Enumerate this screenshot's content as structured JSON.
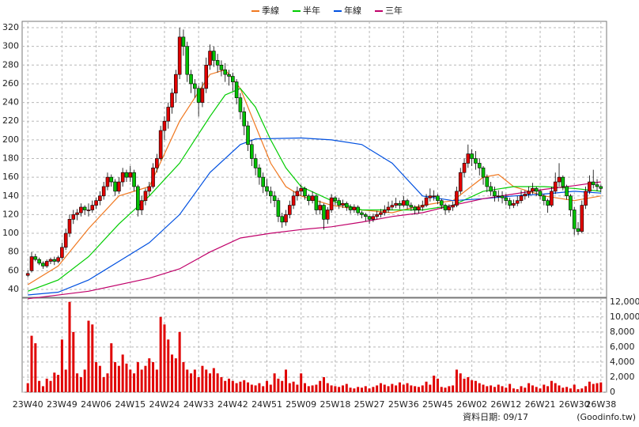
{
  "chart_data": {
    "type": "candlestick",
    "grid": true,
    "categories": [
      "23W40",
      null,
      null,
      null,
      null,
      null,
      null,
      null,
      null,
      "23W49",
      null,
      null,
      null,
      null,
      null,
      null,
      null,
      null,
      "24W06",
      null,
      null,
      null,
      null,
      null,
      null,
      null,
      null,
      "24W15",
      null,
      null,
      null,
      null,
      null,
      null,
      null,
      null,
      "24W24",
      null,
      null,
      null,
      null,
      null,
      null,
      null,
      null,
      "24W33",
      null,
      null,
      null,
      null,
      null,
      null,
      null,
      null,
      "24W42",
      null,
      null,
      null,
      null,
      null,
      null,
      null,
      null,
      "24W51",
      null,
      null,
      null,
      null,
      null,
      null,
      null,
      null,
      "25W09",
      null,
      null,
      null,
      null,
      null,
      null,
      null,
      null,
      "25W18",
      null,
      null,
      null,
      null,
      null,
      null,
      null,
      null,
      "25W27",
      null,
      null,
      null,
      null,
      null,
      null,
      null,
      null,
      "25W36",
      null,
      null,
      null,
      null,
      null,
      null,
      null,
      null,
      "25W45",
      null,
      null,
      null,
      null,
      null,
      null,
      null,
      null,
      "26W02",
      null,
      null,
      null,
      null,
      null,
      null,
      null,
      null,
      "26W12",
      null,
      null,
      null,
      null,
      null,
      null,
      null,
      null,
      "26W21",
      null,
      null,
      null,
      null,
      null,
      null,
      null,
      null,
      "26W30",
      null,
      null,
      null,
      null,
      null,
      null,
      "26W38"
    ],
    "up_color": "#e00000",
    "down_color": "#00c000",
    "candles": [
      [
        55,
        60,
        53,
        57
      ],
      [
        60,
        80,
        58,
        75
      ],
      [
        75,
        78,
        70,
        72
      ],
      [
        72,
        74,
        66,
        68
      ],
      [
        68,
        70,
        62,
        65
      ],
      [
        65,
        72,
        63,
        70
      ],
      [
        70,
        74,
        67,
        72
      ],
      [
        72,
        75,
        66,
        70
      ],
      [
        70,
        76,
        68,
        74
      ],
      [
        74,
        90,
        72,
        85
      ],
      [
        85,
        105,
        82,
        100
      ],
      [
        100,
        120,
        96,
        115
      ],
      [
        115,
        125,
        110,
        120
      ],
      [
        120,
        126,
        114,
        122
      ],
      [
        122,
        132,
        118,
        128
      ],
      [
        128,
        130,
        120,
        125
      ],
      [
        125,
        132,
        118,
        125
      ],
      [
        125,
        135,
        122,
        130
      ],
      [
        130,
        138,
        126,
        135
      ],
      [
        135,
        145,
        130,
        140
      ],
      [
        140,
        155,
        136,
        150
      ],
      [
        150,
        165,
        146,
        160
      ],
      [
        160,
        163,
        150,
        155
      ],
      [
        155,
        158,
        140,
        145
      ],
      [
        145,
        160,
        142,
        155
      ],
      [
        155,
        170,
        150,
        165
      ],
      [
        165,
        168,
        155,
        160
      ],
      [
        160,
        172,
        155,
        165
      ],
      [
        165,
        168,
        145,
        150
      ],
      [
        150,
        152,
        118,
        125
      ],
      [
        125,
        140,
        120,
        135
      ],
      [
        135,
        148,
        130,
        145
      ],
      [
        145,
        155,
        140,
        150
      ],
      [
        150,
        175,
        148,
        170
      ],
      [
        170,
        185,
        165,
        180
      ],
      [
        180,
        215,
        178,
        210
      ],
      [
        210,
        225,
        200,
        220
      ],
      [
        220,
        240,
        212,
        235
      ],
      [
        235,
        255,
        228,
        250
      ],
      [
        250,
        275,
        240,
        270
      ],
      [
        270,
        320,
        265,
        310
      ],
      [
        310,
        318,
        290,
        300
      ],
      [
        300,
        305,
        262,
        270
      ],
      [
        270,
        275,
        250,
        260
      ],
      [
        260,
        265,
        245,
        255
      ],
      [
        255,
        258,
        225,
        240
      ],
      [
        240,
        262,
        235,
        255
      ],
      [
        255,
        288,
        250,
        280
      ],
      [
        280,
        302,
        275,
        295
      ],
      [
        295,
        300,
        278,
        285
      ],
      [
        285,
        292,
        272,
        280
      ],
      [
        280,
        285,
        268,
        275
      ],
      [
        275,
        282,
        262,
        270
      ],
      [
        270,
        275,
        258,
        268
      ],
      [
        268,
        272,
        252,
        262
      ],
      [
        262,
        265,
        238,
        245
      ],
      [
        245,
        250,
        222,
        230
      ],
      [
        230,
        235,
        205,
        215
      ],
      [
        215,
        220,
        188,
        195
      ],
      [
        195,
        200,
        172,
        180
      ],
      [
        180,
        185,
        162,
        170
      ],
      [
        170,
        174,
        152,
        160
      ],
      [
        160,
        165,
        143,
        150
      ],
      [
        150,
        158,
        140,
        145
      ],
      [
        145,
        150,
        132,
        140
      ],
      [
        140,
        145,
        128,
        135
      ],
      [
        135,
        138,
        112,
        118
      ],
      [
        118,
        122,
        106,
        112
      ],
      [
        112,
        125,
        108,
        120
      ],
      [
        120,
        135,
        116,
        130
      ],
      [
        130,
        145,
        126,
        140
      ],
      [
        140,
        150,
        135,
        145
      ],
      [
        145,
        152,
        140,
        148
      ],
      [
        148,
        150,
        136,
        140
      ],
      [
        140,
        142,
        130,
        135
      ],
      [
        135,
        145,
        132,
        140
      ],
      [
        140,
        142,
        120,
        125
      ],
      [
        125,
        135,
        120,
        130
      ],
      [
        130,
        132,
        104,
        115
      ],
      [
        115,
        128,
        110,
        125
      ],
      [
        125,
        142,
        122,
        138
      ],
      [
        138,
        140,
        130,
        135
      ],
      [
        135,
        138,
        126,
        130
      ],
      [
        130,
        136,
        127,
        132
      ],
      [
        132,
        134,
        124,
        128
      ],
      [
        128,
        131,
        121,
        125
      ],
      [
        125,
        131,
        122,
        128
      ],
      [
        128,
        130,
        119,
        122
      ],
      [
        122,
        124,
        116,
        120
      ],
      [
        120,
        122,
        113,
        118
      ],
      [
        118,
        119,
        110,
        115
      ],
      [
        115,
        121,
        112,
        118
      ],
      [
        118,
        124,
        115,
        120
      ],
      [
        120,
        126,
        117,
        122
      ],
      [
        122,
        130,
        119,
        125
      ],
      [
        125,
        134,
        122,
        128
      ],
      [
        128,
        135,
        125,
        130
      ],
      [
        130,
        138,
        127,
        132
      ],
      [
        132,
        135,
        126,
        130
      ],
      [
        130,
        140,
        128,
        135
      ],
      [
        135,
        137,
        126,
        130
      ],
      [
        130,
        133,
        124,
        128
      ],
      [
        128,
        130,
        120,
        125
      ],
      [
        125,
        131,
        121,
        128
      ],
      [
        128,
        135,
        124,
        130
      ],
      [
        130,
        142,
        128,
        138
      ],
      [
        138,
        148,
        134,
        140
      ],
      [
        140,
        146,
        135,
        140
      ],
      [
        140,
        142,
        131,
        135
      ],
      [
        135,
        137,
        126,
        130
      ],
      [
        130,
        132,
        120,
        125
      ],
      [
        125,
        131,
        122,
        128
      ],
      [
        128,
        134,
        124,
        130
      ],
      [
        130,
        150,
        128,
        145
      ],
      [
        145,
        170,
        142,
        165
      ],
      [
        165,
        180,
        160,
        175
      ],
      [
        175,
        195,
        170,
        185
      ],
      [
        185,
        190,
        172,
        180
      ],
      [
        180,
        188,
        168,
        175
      ],
      [
        175,
        180,
        162,
        170
      ],
      [
        170,
        172,
        152,
        160
      ],
      [
        160,
        163,
        144,
        150
      ],
      [
        150,
        155,
        140,
        145
      ],
      [
        145,
        150,
        134,
        140
      ],
      [
        140,
        146,
        134,
        140
      ],
      [
        140,
        145,
        132,
        138
      ],
      [
        138,
        142,
        130,
        135
      ],
      [
        135,
        138,
        126,
        130
      ],
      [
        130,
        136,
        127,
        132
      ],
      [
        132,
        140,
        129,
        135
      ],
      [
        135,
        146,
        132,
        140
      ],
      [
        140,
        146,
        136,
        142
      ],
      [
        142,
        150,
        138,
        145
      ],
      [
        145,
        154,
        142,
        148
      ],
      [
        148,
        150,
        140,
        145
      ],
      [
        145,
        147,
        136,
        140
      ],
      [
        140,
        142,
        130,
        135
      ],
      [
        135,
        137,
        122,
        130
      ],
      [
        130,
        150,
        128,
        145
      ],
      [
        145,
        165,
        142,
        155
      ],
      [
        155,
        175,
        150,
        160
      ],
      [
        160,
        162,
        146,
        150
      ],
      [
        150,
        152,
        136,
        140
      ],
      [
        140,
        142,
        118,
        125
      ],
      [
        125,
        128,
        98,
        105
      ],
      [
        105,
        112,
        98,
        102
      ],
      [
        102,
        135,
        100,
        130
      ],
      [
        130,
        150,
        126,
        145
      ],
      [
        145,
        162,
        142,
        155
      ],
      [
        155,
        168,
        148,
        152
      ],
      [
        152,
        158,
        145,
        150
      ],
      [
        150,
        152,
        144,
        148
      ]
    ],
    "ylim": [
      31.5,
      326.8
    ],
    "yticks": [
      40,
      60,
      80,
      100,
      120,
      140,
      160,
      180,
      200,
      220,
      240,
      260,
      280,
      300,
      320
    ],
    "series": [
      {
        "name": "季線",
        "color": "#f07820",
        "x": [
          0,
          8,
          16,
          24,
          32,
          40,
          48,
          52,
          56,
          60,
          64,
          68,
          72,
          80,
          88,
          96,
          104,
          112,
          120,
          124,
          128,
          136,
          144,
          151
        ],
        "values": [
          45,
          65,
          105,
          140,
          150,
          220,
          270,
          275,
          255,
          215,
          175,
          150,
          140,
          130,
          125,
          122,
          130,
          135,
          160,
          163,
          150,
          140,
          135,
          140
        ]
      },
      {
        "name": "半年",
        "color": "#00cc00",
        "x": [
          0,
          8,
          16,
          24,
          32,
          40,
          48,
          52,
          56,
          60,
          64,
          68,
          72,
          80,
          88,
          96,
          104,
          112,
          120,
          128,
          136,
          144,
          151
        ],
        "values": [
          38,
          50,
          75,
          110,
          140,
          175,
          225,
          248,
          255,
          235,
          200,
          170,
          150,
          135,
          125,
          125,
          125,
          130,
          145,
          150,
          150,
          148,
          145
        ]
      },
      {
        "name": "年線",
        "color": "#0050e0",
        "x": [
          0,
          8,
          16,
          24,
          32,
          40,
          48,
          56,
          60,
          72,
          80,
          88,
          96,
          104,
          112,
          120,
          128,
          136,
          144,
          151
        ],
        "values": [
          34,
          37,
          50,
          70,
          90,
          120,
          165,
          195,
          201,
          202,
          200,
          195,
          175,
          140,
          135,
          137,
          140,
          142,
          145,
          143
        ]
      },
      {
        "name": "三年",
        "color": "#c0006a",
        "x": [
          0,
          16,
          32,
          40,
          48,
          56,
          64,
          72,
          80,
          88,
          96,
          104,
          112,
          120,
          128,
          136,
          144,
          151
        ],
        "values": [
          30,
          38,
          52,
          62,
          80,
          95,
          100,
          104,
          107,
          112,
          118,
          122,
          130,
          137,
          142,
          147,
          151,
          155
        ]
      }
    ],
    "volume": {
      "color": "#e00000",
      "values": [
        1200,
        7500,
        6500,
        1500,
        800,
        1800,
        1500,
        2600,
        2300,
        7000,
        3000,
        12000,
        8000,
        2500,
        2000,
        3000,
        9500,
        9000,
        4000,
        3500,
        2000,
        2500,
        6500,
        4000,
        3500,
        5000,
        3800,
        3000,
        2500,
        4000,
        3000,
        3500,
        4500,
        4000,
        3000,
        10000,
        9000,
        7000,
        5000,
        4500,
        8000,
        4000,
        3000,
        2500,
        3000,
        2000,
        3500,
        3000,
        2500,
        3200,
        2500,
        2000,
        1500,
        1800,
        1500,
        1200,
        1400,
        1600,
        1300,
        1000,
        900,
        1200,
        800,
        1500,
        1000,
        2500,
        1800,
        1500,
        3000,
        1200,
        1400,
        1000,
        2500,
        1200,
        800,
        900,
        1000,
        1500,
        2000,
        1200,
        900,
        800,
        700,
        900,
        1100,
        600,
        500,
        700,
        600,
        800,
        500,
        700,
        900,
        1200,
        1000,
        800,
        1100,
        900,
        1300,
        1000,
        1200,
        900,
        800,
        700,
        900,
        1400,
        1000,
        2200,
        1800,
        700,
        600,
        800,
        900,
        3000,
        2500,
        1800,
        2000,
        1600,
        1500,
        1200,
        1000,
        800,
        900,
        700,
        1000,
        800,
        600,
        1100,
        500,
        400,
        800,
        600,
        1200,
        900,
        700,
        500,
        1000,
        800,
        1500,
        1200,
        900,
        600,
        700,
        500,
        1000,
        400,
        500,
        800,
        1400,
        1100,
        1200,
        1300
      ],
      "ylim": [
        0,
        12500
      ],
      "yticks": [
        0,
        {
          "value": 2000,
          "label": "2,000"
        },
        {
          "value": 4000,
          "label": "4,000"
        },
        {
          "value": 6000,
          "label": "6,000"
        },
        {
          "value": 8000,
          "label": "8,000"
        },
        {
          "value": 10000,
          "label": "10,000"
        },
        {
          "value": 12000,
          "label": "12,000"
        }
      ]
    },
    "source_date": "資料日期: 09/17",
    "source": "(Goodinfo.tw)"
  }
}
